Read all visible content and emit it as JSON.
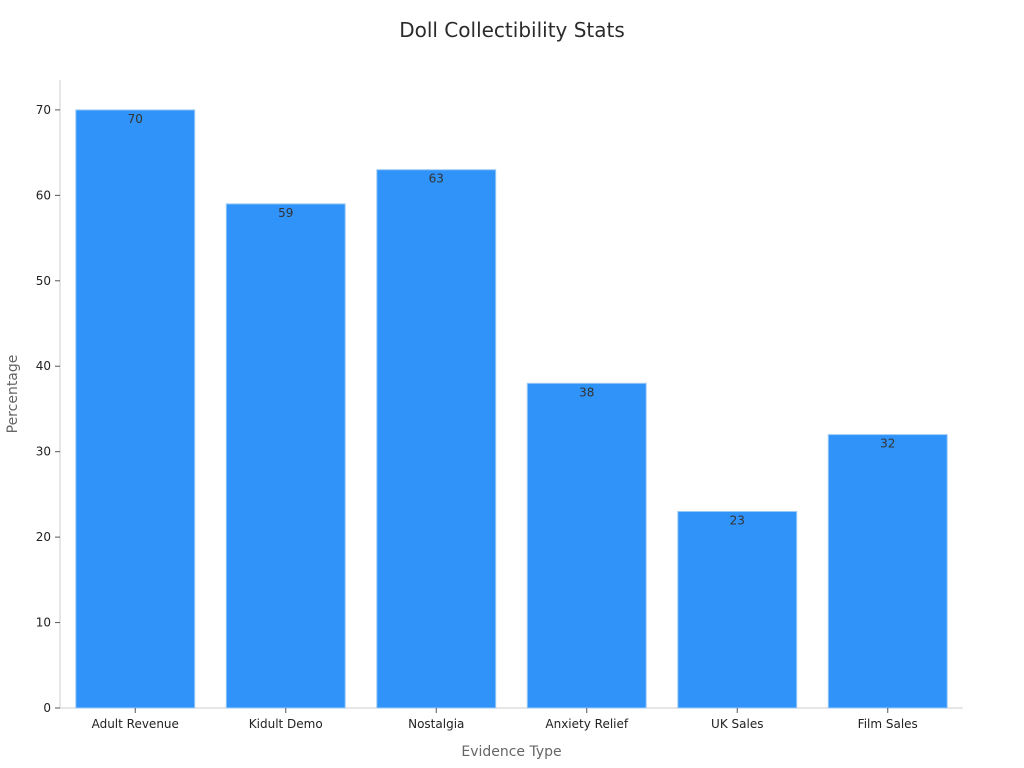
{
  "chart_data": {
    "type": "bar",
    "title": "Doll Collectibility Stats",
    "xlabel": "Evidence Type",
    "ylabel": "Percentage",
    "categories": [
      "Adult Revenue",
      "Kidult Demo",
      "Nostalgia",
      "Anxiety Relief",
      "UK Sales",
      "Film Sales"
    ],
    "values": [
      70,
      59,
      63,
      38,
      23,
      32
    ],
    "ylim": [
      0,
      73.5
    ],
    "yticks": [
      0,
      10,
      20,
      30,
      40,
      50,
      60,
      70
    ],
    "grid": false,
    "legend": "none",
    "bar_color": "#2f93f9",
    "bar_edge_color": "#9ccaf5",
    "axis_color": "#cccccc"
  }
}
